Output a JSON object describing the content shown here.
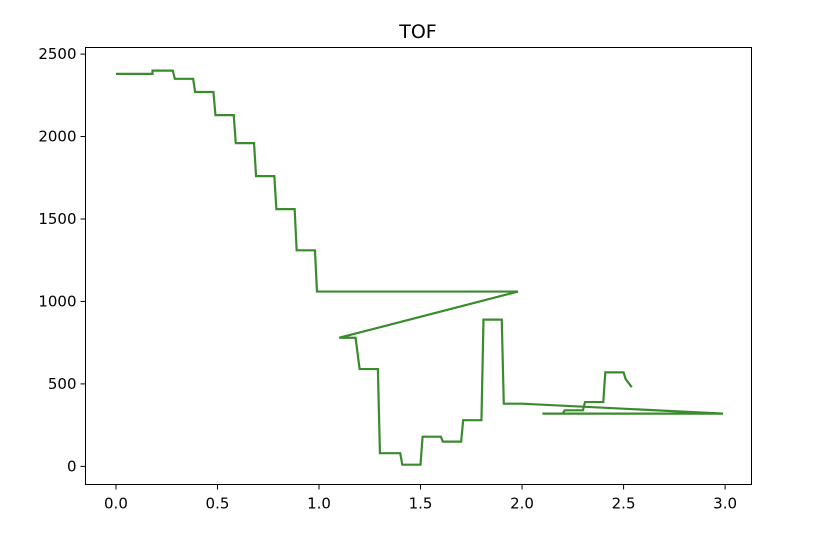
{
  "chart_data": {
    "type": "line",
    "title": "TOF",
    "xlabel": "",
    "ylabel": "",
    "xlim": [
      -0.15,
      3.13
    ],
    "ylim": [
      -110,
      2540
    ],
    "xticks": [
      0.0,
      0.5,
      1.0,
      1.5,
      2.0,
      2.5,
      3.0
    ],
    "xtick_labels": [
      "0.0",
      "0.5",
      "1.0",
      "1.5",
      "2.0",
      "2.5",
      "3.0"
    ],
    "yticks": [
      0,
      500,
      1000,
      1500,
      2000,
      2500
    ],
    "ytick_labels": [
      "0",
      "500",
      "1000",
      "1500",
      "2000",
      "2500"
    ],
    "grid": false,
    "legend": "none",
    "series": [
      {
        "color": "#3a8a2e",
        "x": [
          0.0,
          0.18,
          0.18,
          0.28,
          0.29,
          0.38,
          0.39,
          0.48,
          0.49,
          0.58,
          0.59,
          0.68,
          0.69,
          0.78,
          0.79,
          0.88,
          0.89,
          0.98,
          0.99,
          1.98,
          1.1,
          1.18,
          1.2,
          1.29,
          1.3,
          1.4,
          1.41,
          1.5,
          1.51,
          1.6,
          1.61,
          1.7,
          1.71,
          1.8,
          1.81,
          1.9,
          1.91,
          2.0,
          2.99,
          2.1,
          2.2,
          2.21,
          2.3,
          2.31,
          2.4,
          2.41,
          2.5,
          2.51,
          2.54
        ],
        "y": [
          2380,
          2380,
          2400,
          2400,
          2350,
          2350,
          2270,
          2270,
          2130,
          2130,
          1960,
          1960,
          1760,
          1760,
          1560,
          1560,
          1310,
          1310,
          1060,
          1060,
          780,
          780,
          590,
          590,
          80,
          80,
          10,
          10,
          180,
          180,
          150,
          150,
          280,
          280,
          890,
          890,
          380,
          380,
          320,
          320,
          320,
          340,
          340,
          390,
          390,
          570,
          570,
          530,
          480
        ]
      }
    ]
  }
}
